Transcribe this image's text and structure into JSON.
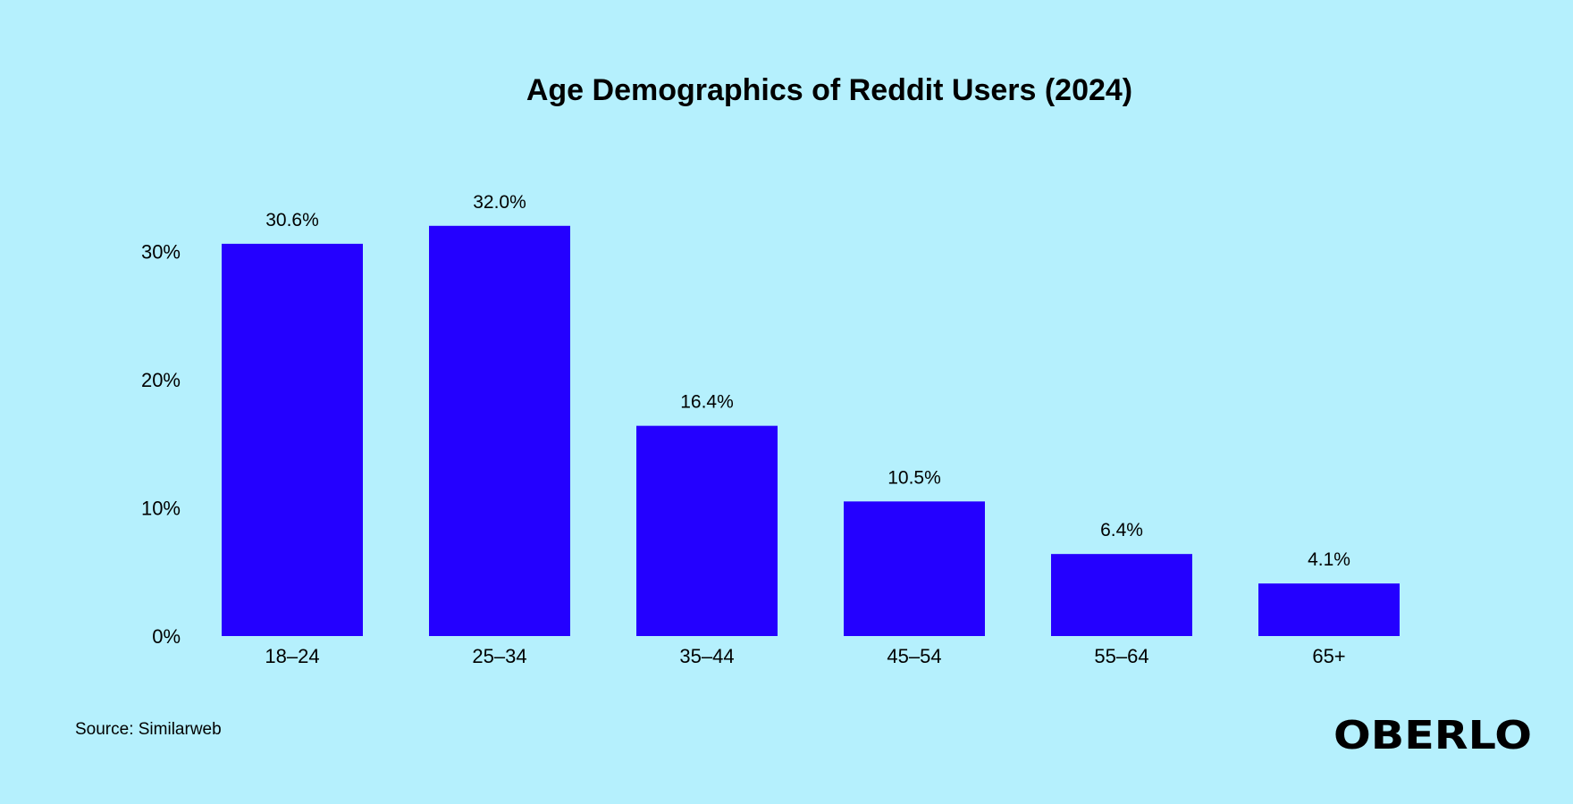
{
  "chart_data": {
    "type": "bar",
    "title": "Age Demographics of Reddit Users (2024)",
    "categories": [
      "18–24",
      "25–34",
      "35–44",
      "45–54",
      "55–64",
      "65+"
    ],
    "values": [
      30.6,
      32.0,
      16.4,
      10.5,
      6.4,
      4.1
    ],
    "data_labels": [
      "30.6%",
      "32.0%",
      "16.4%",
      "10.5%",
      "6.4%",
      "4.1%"
    ],
    "y_ticks": [
      0,
      10,
      20,
      30
    ],
    "y_tick_labels": [
      "0%",
      "10%",
      "20%",
      "30%"
    ],
    "ylim": [
      0,
      35
    ],
    "xlabel": "",
    "ylabel": "",
    "grid": false,
    "bar_color": "#2400ff"
  },
  "footer": {
    "source": "Source: Similarweb",
    "logo": "OBERLO"
  },
  "colors": {
    "background": "#b5f0fd",
    "bar": "#2400ff",
    "text": "#000000"
  }
}
